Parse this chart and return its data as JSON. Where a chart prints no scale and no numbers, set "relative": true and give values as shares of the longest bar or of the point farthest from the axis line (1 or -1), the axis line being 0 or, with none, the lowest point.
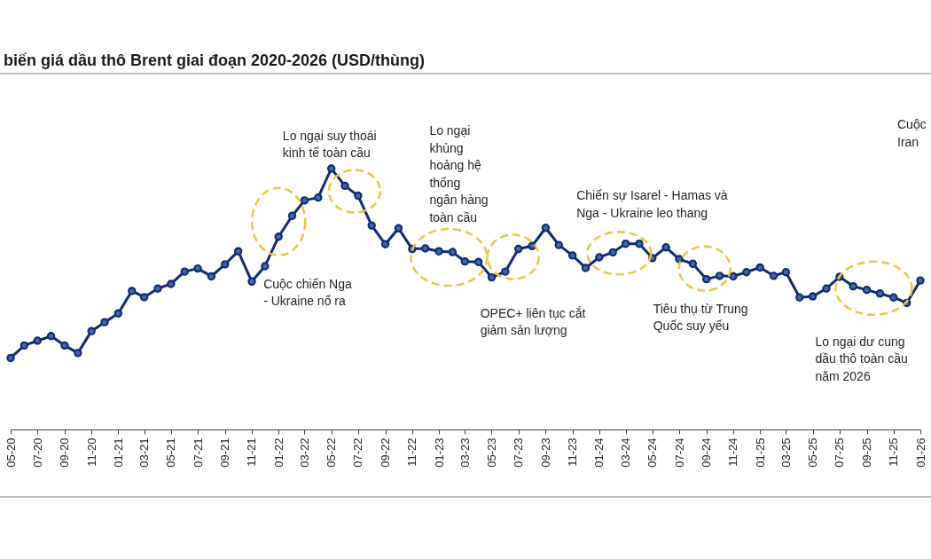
{
  "chart_data": {
    "type": "line",
    "title": "biến giá dầu thô Brent giai đoạn 2020-2026 (USD/thùng)",
    "relative": true,
    "color": "#102c6c",
    "marker": "circle",
    "line_style": "solid",
    "x": [
      "2020-05",
      "2020-06",
      "2020-07",
      "2020-08",
      "2020-09",
      "2020-10",
      "2020-11",
      "2020-12",
      "2021-01",
      "2021-02",
      "2021-03",
      "2021-04",
      "2021-05",
      "2021-06",
      "2021-07",
      "2021-08",
      "2021-09",
      "2021-10",
      "2021-11",
      "2021-12",
      "2022-01",
      "2022-02",
      "2022-03",
      "2022-04",
      "2022-05",
      "2022-06",
      "2022-07",
      "2022-08",
      "2022-09",
      "2022-10",
      "2022-11",
      "2022-12",
      "2023-01",
      "2023-02",
      "2023-03",
      "2023-04",
      "2023-05",
      "2023-06",
      "2023-07",
      "2023-08",
      "2023-09",
      "2023-10",
      "2023-11",
      "2023-12",
      "2024-01",
      "2024-02",
      "2024-03",
      "2024-04",
      "2024-05",
      "2024-06",
      "2024-07",
      "2024-08",
      "2024-09",
      "2024-10",
      "2024-11",
      "2024-12",
      "2025-01",
      "2025-02",
      "2025-03",
      "2025-04",
      "2025-05",
      "2025-06",
      "2025-07",
      "2025-08",
      "2025-09",
      "2025-10",
      "2025-11",
      "2025-12",
      "2026-01"
    ],
    "values": [
      0.274,
      0.322,
      0.34,
      0.358,
      0.322,
      0.293,
      0.377,
      0.411,
      0.445,
      0.531,
      0.507,
      0.54,
      0.558,
      0.605,
      0.617,
      0.587,
      0.633,
      0.683,
      0.567,
      0.626,
      0.739,
      0.819,
      0.878,
      0.889,
      1,
      0.934,
      0.896,
      0.782,
      0.71,
      0.771,
      0.692,
      0.694,
      0.683,
      0.68,
      0.644,
      0.642,
      0.583,
      0.605,
      0.692,
      0.703,
      0.773,
      0.707,
      0.667,
      0.619,
      0.66,
      0.679,
      0.712,
      0.712,
      0.657,
      0.698,
      0.653,
      0.635,
      0.576,
      0.589,
      0.587,
      0.603,
      0.621,
      0.589,
      0.603,
      0.506,
      0.51,
      0.54,
      0.585,
      0.549,
      0.535,
      0.521,
      0.506,
      0.485,
      0.571
    ],
    "xlim": [
      "2020-05",
      "2026-01"
    ],
    "xticks": [
      {
        "value": "2020-05",
        "label": "05-20"
      },
      {
        "value": "2020-07",
        "label": "07-20"
      },
      {
        "value": "2020-09",
        "label": "09-20"
      },
      {
        "value": "2020-11",
        "label": "11-20"
      },
      {
        "value": "2021-01",
        "label": "01-21"
      },
      {
        "value": "2021-03",
        "label": "03-21"
      },
      {
        "value": "2021-05",
        "label": "05-21"
      },
      {
        "value": "2021-07",
        "label": "07-21"
      },
      {
        "value": "2021-09",
        "label": "09-21"
      },
      {
        "value": "2021-11",
        "label": "11-21"
      },
      {
        "value": "2022-01",
        "label": "01-22"
      },
      {
        "value": "2022-03",
        "label": "03-22"
      },
      {
        "value": "2022-05",
        "label": "05-22"
      },
      {
        "value": "2022-07",
        "label": "07-22"
      },
      {
        "value": "2022-09",
        "label": "09-22"
      },
      {
        "value": "2022-11",
        "label": "11-22"
      },
      {
        "value": "2023-01",
        "label": "01-23"
      },
      {
        "value": "2023-03",
        "label": "03-23"
      },
      {
        "value": "2023-05",
        "label": "05-23"
      },
      {
        "value": "2023-07",
        "label": "07-23"
      },
      {
        "value": "2023-09",
        "label": "09-23"
      },
      {
        "value": "2023-11",
        "label": "11-23"
      },
      {
        "value": "2024-01",
        "label": "01-24"
      },
      {
        "value": "2024-03",
        "label": "03-24"
      },
      {
        "value": "2024-05",
        "label": "05-24"
      },
      {
        "value": "2024-07",
        "label": "07-24"
      },
      {
        "value": "2024-09",
        "label": "09-24"
      },
      {
        "value": "2024-11",
        "label": "11-24"
      },
      {
        "value": "2025-01",
        "label": "01-25"
      },
      {
        "value": "2025-03",
        "label": "03-25"
      },
      {
        "value": "2025-05",
        "label": "05-25"
      },
      {
        "value": "2025-07",
        "label": "07-25"
      },
      {
        "value": "2025-09",
        "label": "09-25"
      },
      {
        "value": "2025-11",
        "label": "11-25"
      },
      {
        "value": "2026-01",
        "label": "01-26"
      }
    ],
    "annotations": [
      "Cuộc chiến Nga - Ukraine nổ ra",
      "Lo ngại suy thoái kinh tế toàn cầu",
      "Lo ngại khủng hoảng hệ thống ngân hàng toàn cầu",
      "OPEC+ liên tục cắt giảm sản lượng",
      "Chiến sự Isarel - Hamas và Nga - Ukraine leo thang",
      "Tiêu thụ từ Trung Quốc suy yếu",
      "Lo ngại dư cung dầu thô toàn cầu năm 2026",
      "Cuộc Iran"
    ]
  }
}
